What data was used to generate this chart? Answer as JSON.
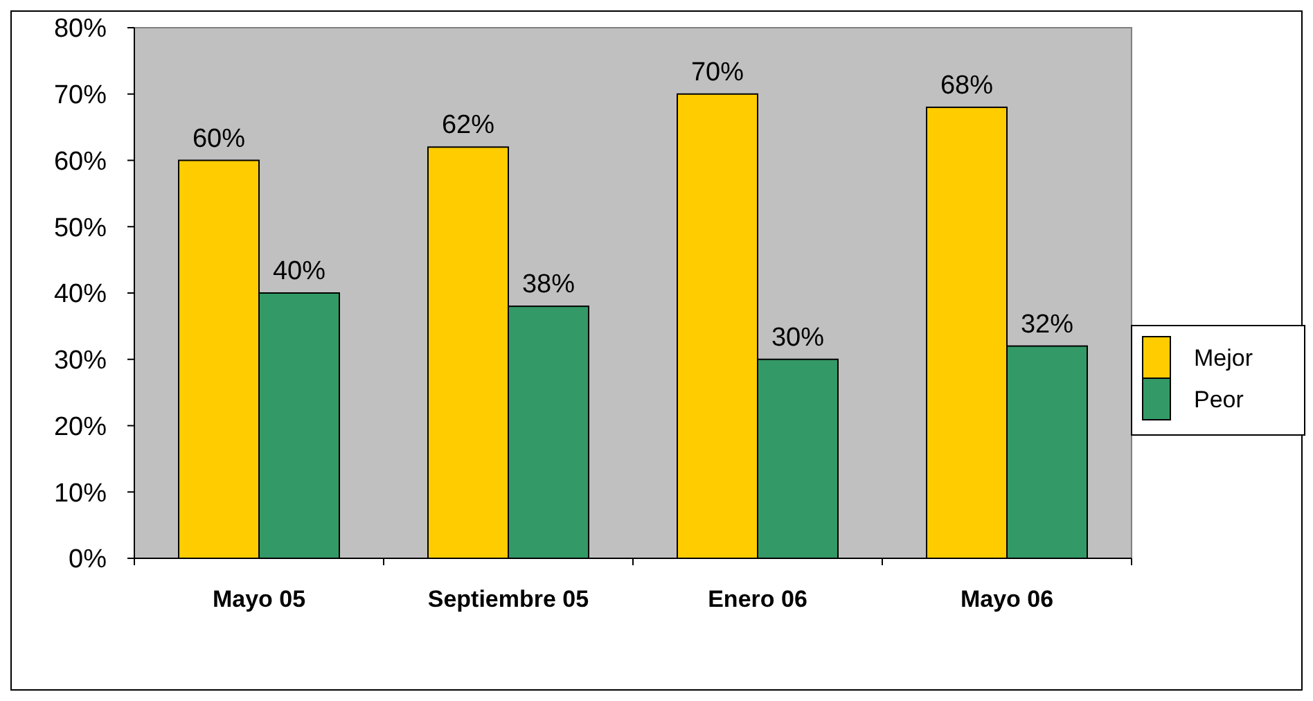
{
  "chart_data": {
    "type": "bar",
    "categories": [
      "Mayo 05",
      "Septiembre 05",
      "Enero 06",
      "Mayo 06"
    ],
    "series": [
      {
        "name": "Mejor",
        "color": "#ffcc00",
        "values": [
          60,
          62,
          70,
          68
        ],
        "value_labels": [
          "60%",
          "62%",
          "70%",
          "68%"
        ]
      },
      {
        "name": "Peor",
        "color": "#339966",
        "values": [
          40,
          38,
          30,
          32
        ],
        "value_labels": [
          "40%",
          "38%",
          "30%",
          "32%"
        ]
      }
    ],
    "ylim": [
      0,
      80
    ],
    "yticks": [
      {
        "value": 0,
        "label": "0%"
      },
      {
        "value": 10,
        "label": "10%"
      },
      {
        "value": 20,
        "label": "20%"
      },
      {
        "value": 30,
        "label": "30%"
      },
      {
        "value": 40,
        "label": "40%"
      },
      {
        "value": 50,
        "label": "50%"
      },
      {
        "value": 60,
        "label": "60%"
      },
      {
        "value": 70,
        "label": "70%"
      },
      {
        "value": 80,
        "label": "80%"
      }
    ],
    "grid": false,
    "legend": "right"
  }
}
